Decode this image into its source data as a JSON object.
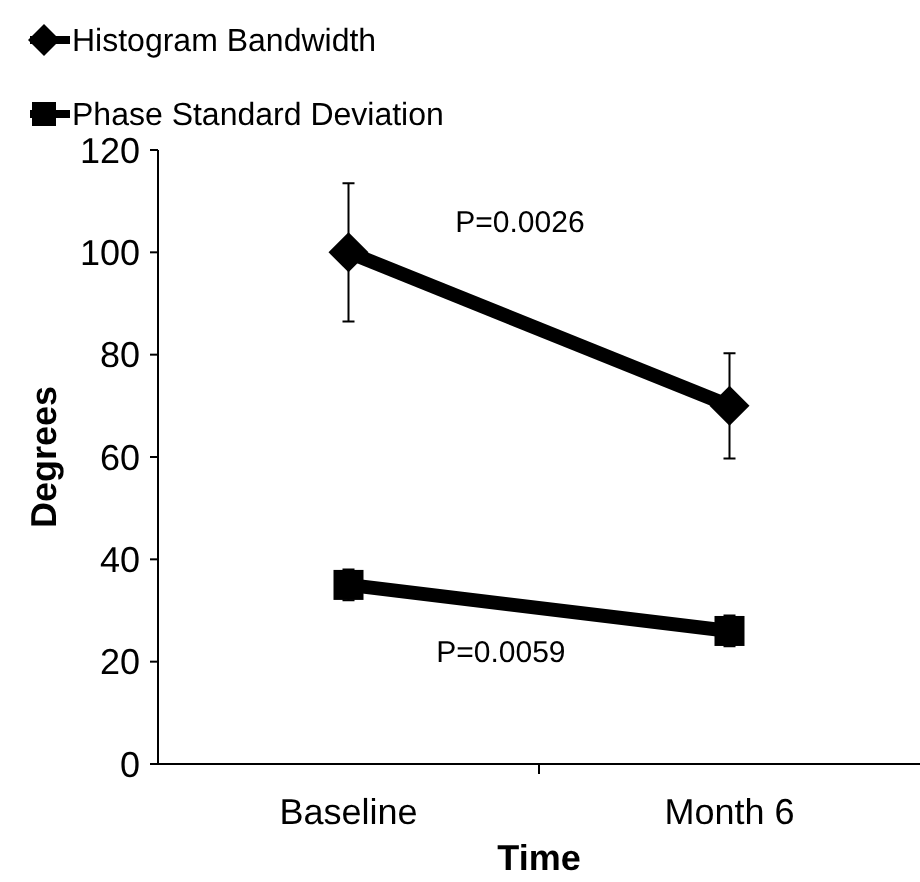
{
  "chart_data": {
    "type": "line",
    "xlabel": "Time",
    "ylabel": "Degrees",
    "categories": [
      "Baseline",
      "Month 6"
    ],
    "series": [
      {
        "name": "Histogram Bandwidth",
        "color": "#000000",
        "values": [
          100,
          70
        ],
        "errors": [
          13.5,
          10.3
        ],
        "marker": "diamond"
      },
      {
        "name": "Phase Standard Deviation",
        "color": "#000000",
        "values": [
          35,
          26
        ],
        "errors": [
          3,
          3
        ],
        "marker": "square"
      }
    ],
    "ylim": [
      0,
      120
    ],
    "yticks": [
      0,
      20,
      40,
      60,
      80,
      100,
      120
    ],
    "legend": "top",
    "grid": false,
    "annotations": [
      "P=0.0026",
      "P=0.0059"
    ]
  }
}
